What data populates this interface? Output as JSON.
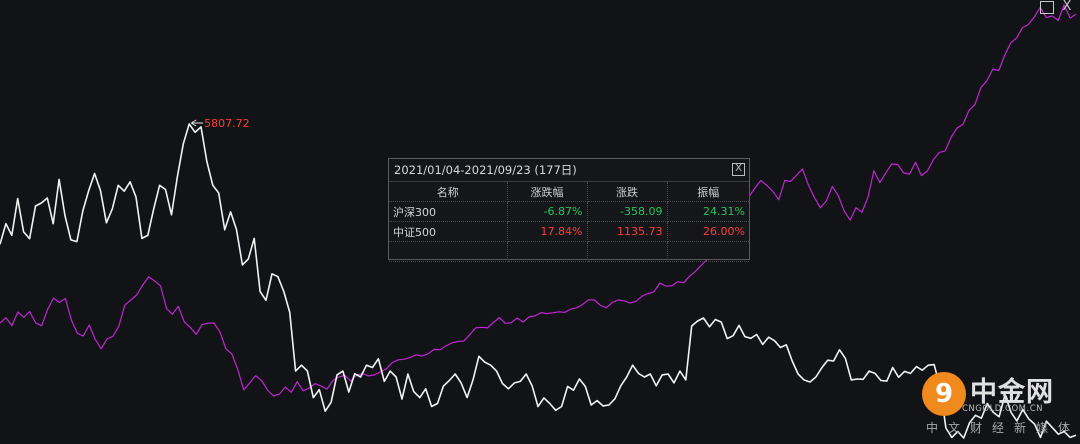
{
  "window": {
    "maximize_icon": "square-icon",
    "close_label": "X"
  },
  "stats": {
    "title": "2021/01/04-2021/09/23 (177日)",
    "close_label": "X",
    "headers": [
      "名称",
      "涨跌幅",
      "涨跌",
      "振幅"
    ],
    "rows": [
      {
        "name": "沪深300",
        "change_pct": "-6.87%",
        "change": "-358.09",
        "amplitude": "24.31%"
      },
      {
        "name": "中证500",
        "change_pct": "17.84%",
        "change": "1135.73",
        "amplitude": "26.00%"
      }
    ],
    "colors": {
      "up": "#ff3b3b",
      "down": "#22c55e"
    }
  },
  "watermark": {
    "logo_char": "9",
    "title": "中金网",
    "url": "CNGOLD.COM.CN",
    "tagline": "中文财经新媒体"
  },
  "chart_data": {
    "type": "line",
    "x_range": [
      "2021/01/04",
      "2021/09/23"
    ],
    "trading_days": 177,
    "annotations": [
      {
        "label": "5807.72",
        "series": "沪深300",
        "note": "period high"
      }
    ],
    "series": [
      {
        "name": "沪深300",
        "color": "#f2f2f2",
        "values": [
          5400,
          5470,
          5430,
          5555,
          5442,
          5419,
          5530,
          5540,
          5557,
          5470,
          5620,
          5497,
          5415,
          5409,
          5513,
          5582,
          5640,
          5582,
          5473,
          5520,
          5600,
          5580,
          5612,
          5560,
          5420,
          5430,
          5520,
          5600,
          5586,
          5500,
          5630,
          5741,
          5808,
          5780,
          5798,
          5680,
          5600,
          5574,
          5449,
          5510,
          5450,
          5330,
          5350,
          5420,
          5240,
          5210,
          5300,
          5290,
          5240,
          5170,
          4970,
          4990,
          4970,
          4880,
          4907,
          4834,
          4864,
          4957,
          4970,
          4899,
          4961,
          4950,
          4990,
          4982,
          5012,
          4935,
          4970,
          4950,
          4875,
          4960,
          4900,
          4880,
          4910,
          4850,
          4860,
          4919,
          4938,
          4960,
          4930,
          4880,
          4940,
          5020,
          5000,
          4990,
          4970,
          4928,
          4910,
          4930,
          4935,
          4960,
          4920,
          4850,
          4879,
          4860,
          4837,
          4850,
          4918,
          4905,
          4943,
          4918,
          4855,
          4870,
          4852,
          4855,
          4876,
          4920,
          4950,
          4990,
          4962,
          4950,
          4960,
          4920,
          4957,
          4960,
          4930,
          4970,
          4940,
          5123,
          5140,
          5150,
          5120,
          5145,
          5136,
          5080,
          5090,
          5125,
          5087,
          5081,
          5094,
          5060,
          5085,
          5073,
          5050,
          5059,
          5004,
          4960,
          4940,
          4933,
          4950,
          4981,
          5007,
          5004,
          5042,
          5013,
          4940,
          4943,
          4942,
          4970,
          4962,
          4938,
          4936,
          4982,
          4949,
          4969,
          4962,
          4985,
          4973,
          4990,
          4992,
          4918,
          4777,
          4745,
          4765,
          4743,
          4795,
          4820,
          4810,
          4860,
          4830,
          4815,
          4890,
          4830,
          4801,
          4840,
          4808,
          4790,
          4745,
          4800,
          4778,
          4756,
          4765,
          4745,
          4752
        ]
      },
      {
        "name": "中证500",
        "color": "#c026d3",
        "values": [
          6340,
          6367,
          6328,
          6394,
          6368,
          6396,
          6341,
          6327,
          6407,
          6461,
          6440,
          6459,
          6356,
          6291,
          6278,
          6331,
          6263,
          6216,
          6264,
          6277,
          6326,
          6427,
          6452,
          6476,
          6524,
          6564,
          6544,
          6520,
          6411,
          6383,
          6421,
          6346,
          6320,
          6286,
          6333,
          6340,
          6340,
          6297,
          6216,
          6192,
          6115,
          6018,
          6051,
          6086,
          6063,
          6017,
          5988,
          5997,
          6031,
          6006,
          6057,
          6013,
          6026,
          6048,
          6036,
          6021,
          6063,
          6080,
          6088,
          6061,
          6090,
          6096,
          6085,
          6090,
          6105,
          6120,
          6150,
          6163,
          6166,
          6174,
          6187,
          6181,
          6192,
          6213,
          6211,
          6230,
          6244,
          6252,
          6253,
          6283,
          6317,
          6320,
          6317,
          6343,
          6367,
          6339,
          6342,
          6365,
          6345,
          6370,
          6375,
          6391,
          6386,
          6390,
          6395,
          6392,
          6408,
          6414,
          6430,
          6453,
          6452,
          6426,
          6414,
          6440,
          6452,
          6448,
          6437,
          6446,
          6470,
          6483,
          6491,
          6534,
          6519,
          6520,
          6540,
          6535,
          6567,
          6591,
          6621,
          6649,
          6691,
          6727,
          6795,
          6869,
          6924,
          7002,
          6952,
          6993,
          7029,
          7005,
          6977,
          6936,
          7029,
          7025,
          7055,
          7085,
          7006,
          6947,
          6897,
          6930,
          7000,
          6956,
          6882,
          6838,
          6898,
          6876,
          6947,
          7077,
          7019,
          7066,
          7109,
          7107,
          7066,
          7060,
          7117,
          7053,
          7075,
          7129,
          7165,
          7172,
          7239,
          7283,
          7300,
          7368,
          7396,
          7478,
          7511,
          7568,
          7560,
          7634,
          7693,
          7718,
          7768,
          7783,
          7820,
          7866,
          7816,
          7824,
          7802,
          7877,
          7814,
          7832
        ]
      }
    ]
  }
}
